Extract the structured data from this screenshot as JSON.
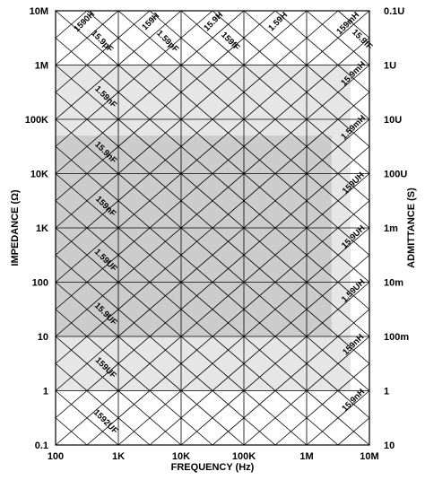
{
  "chart_data": {
    "type": "line",
    "title": "",
    "xlabel": "FREQUENCY (Hz)",
    "ylabel_left": "IMPEDANCE (Ω)",
    "ylabel_right": "ADMITTANCE (S)",
    "x_scale": "log",
    "y_scale": "log",
    "xlim": [
      100,
      10000000
    ],
    "ylim": [
      0.1,
      10000000
    ],
    "grid": true,
    "x_ticks": [
      "100",
      "1K",
      "10K",
      "100K",
      "1M",
      "10M"
    ],
    "y_ticks_left": [
      "0.1",
      "1",
      "10",
      "100",
      "1K",
      "10K",
      "100K",
      "1M",
      "10M"
    ],
    "y_ticks_right": [
      "10",
      "1",
      "100m",
      "10m",
      "1m",
      "100U",
      "10U",
      "1U",
      "0.1U"
    ],
    "shaded_regions": [
      {
        "x_range": [
          100,
          5000000
        ],
        "y_range": [
          1,
          1000000
        ],
        "color": "#e6e6e6"
      },
      {
        "x_range": [
          100,
          2500000
        ],
        "y_range": [
          10,
          50000
        ],
        "color": "#cccccc"
      }
    ],
    "inductance_lines": [
      "1590H",
      "159H",
      "15.9H",
      "1.59H",
      "159mH",
      "15.9mH",
      "1.59mH",
      "159UH",
      "15.9UH",
      "1.59UH",
      "159nH",
      "15.9nH"
    ],
    "capacitance_lines": [
      "15.9pF",
      "1.59pF",
      "159fF",
      "15.9fF",
      "1.59nF",
      "15.9nF",
      "159nF",
      "1.59UF",
      "15.9UF",
      "159UF",
      "1592UF"
    ],
    "colors": {
      "line": "#000000",
      "light_shade": "#e6e6e6",
      "dark_shade": "#cccccc"
    }
  }
}
